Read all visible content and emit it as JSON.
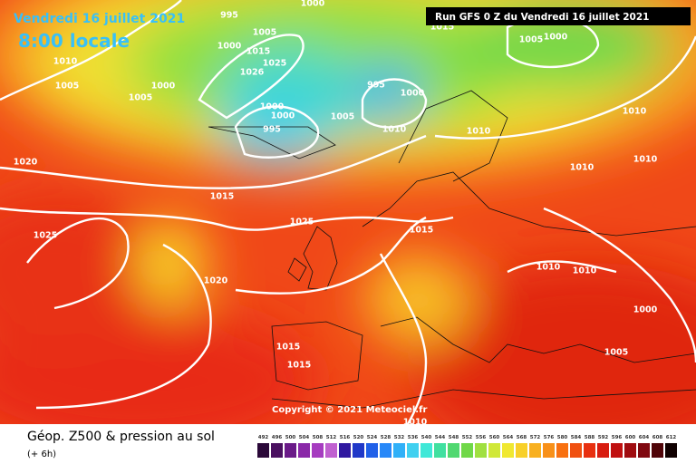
{
  "header": {
    "date": "Vendredi 16 juillet 2021",
    "time": "8:00 locale",
    "run": "Run GFS 0 Z du Vendredi 16 juillet 2021",
    "copyright": "Copyright © 2021 Meteociel.fr"
  },
  "footer": {
    "title": "Géop. Z500 & pression au sol",
    "step": "(+ 6h)"
  },
  "legend": {
    "values": [
      492,
      496,
      500,
      504,
      508,
      512,
      516,
      520,
      524,
      528,
      532,
      536,
      540,
      544,
      548,
      552,
      556,
      560,
      564,
      568,
      572,
      576,
      580,
      584,
      588,
      592,
      596,
      600,
      604,
      608,
      612
    ],
    "colors": [
      "#2a0838",
      "#4a1060",
      "#6a1a88",
      "#8a28a8",
      "#a63cc0",
      "#c060d0",
      "#3018a0",
      "#2038c8",
      "#2060e8",
      "#2888f8",
      "#30b0f8",
      "#40d0f0",
      "#40e8d8",
      "#40e0a0",
      "#50d870",
      "#70d848",
      "#a0e040",
      "#d0e838",
      "#f0e830",
      "#f8d028",
      "#f8b020",
      "#f89018",
      "#f87010",
      "#f05010",
      "#e83010",
      "#d81c10",
      "#c01010",
      "#a00c10",
      "#800810",
      "#500408",
      "#100000"
    ]
  },
  "isobar_labels": [
    "995",
    "1000",
    "1005",
    "1000",
    "1010",
    "1015",
    "1025",
    "1026",
    "1005",
    "1000",
    "1005",
    "995",
    "1000",
    "1000",
    "1000",
    "1005",
    "995",
    "1010",
    "1010",
    "1015",
    "1005",
    "1000",
    "1010",
    "1010",
    "1010",
    "1020",
    "1015",
    "1025",
    "1015",
    "1025",
    "1020",
    "1010",
    "1010",
    "1000",
    "1005",
    "1015",
    "1015",
    "1010"
  ]
}
